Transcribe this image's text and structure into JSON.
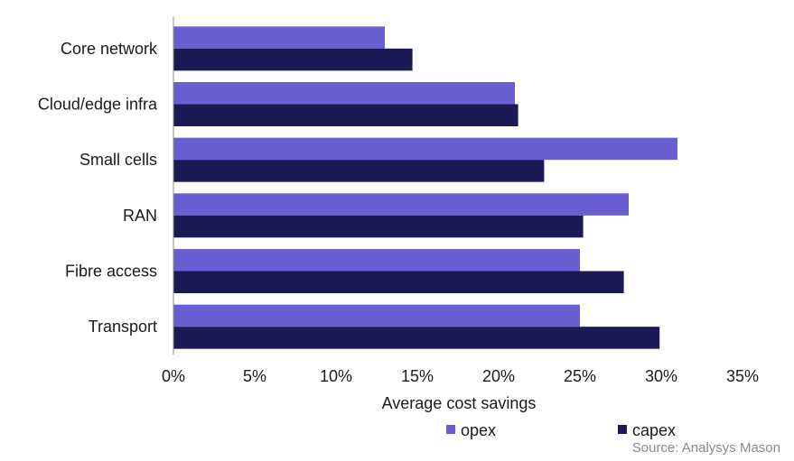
{
  "chart_data": {
    "type": "bar",
    "orientation": "horizontal",
    "categories": [
      "Core network",
      "Cloud/edge infra",
      "Small cells",
      "RAN",
      "Fibre access",
      "Transport"
    ],
    "series": [
      {
        "name": "opex",
        "color": "#6a5fd2",
        "values": [
          13,
          21,
          31,
          28,
          25,
          25
        ]
      },
      {
        "name": "capex",
        "color": "#1c1a55",
        "values": [
          14.7,
          21.2,
          22.8,
          25.2,
          27.7,
          29.9
        ]
      }
    ],
    "xlabel": "Average cost savings",
    "xlim": [
      0,
      35
    ],
    "xticks": [
      "0%",
      "5%",
      "10%",
      "15%",
      "20%",
      "25%",
      "30%",
      "35%"
    ],
    "xtick_values": [
      0,
      5,
      10,
      15,
      20,
      25,
      30,
      35
    ],
    "grid": false,
    "legend_position": "bottom"
  },
  "source": "Source: Analysys Mason"
}
